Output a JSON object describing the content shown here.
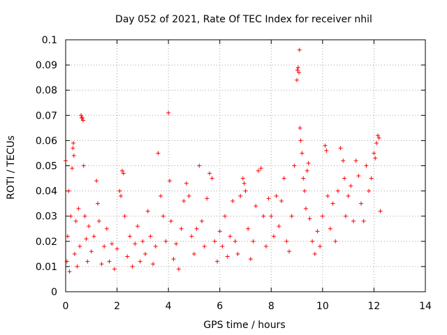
{
  "chart_data": {
    "type": "scatter",
    "title": "Day 052 of 2021, Rate Of TEC Index for receiver nhil",
    "xlabel": "GPS time / hours",
    "ylabel": "ROTI / TECUs",
    "xlim": [
      0,
      14
    ],
    "ylim": [
      0,
      0.1
    ],
    "x_ticks": [
      0,
      2,
      4,
      6,
      8,
      10,
      12,
      14
    ],
    "y_ticks": [
      0,
      0.01,
      0.02,
      0.03,
      0.04,
      0.05,
      0.06,
      0.07,
      0.08,
      0.09,
      0.1
    ],
    "x_tick_labels": [
      "0",
      "2",
      "4",
      "6",
      "8",
      "10",
      "12",
      "14"
    ],
    "y_tick_labels": [
      "0",
      "0.01",
      "0.02",
      "0.03",
      "0.04",
      "0.05",
      "0.06",
      "0.07",
      "0.08",
      "0.09",
      "0.1"
    ],
    "grid": true,
    "marker": "+",
    "color": "#ff0000",
    "series": [
      {
        "name": "ROTI",
        "points": [
          [
            0.0,
            0.052
          ],
          [
            0.05,
            0.012
          ],
          [
            0.08,
            0.022
          ],
          [
            0.12,
            0.04
          ],
          [
            0.15,
            0.008
          ],
          [
            0.2,
            0.03
          ],
          [
            0.25,
            0.049
          ],
          [
            0.28,
            0.057
          ],
          [
            0.3,
            0.059
          ],
          [
            0.32,
            0.054
          ],
          [
            0.35,
            0.015
          ],
          [
            0.4,
            0.028
          ],
          [
            0.45,
            0.01
          ],
          [
            0.5,
            0.033
          ],
          [
            0.55,
            0.018
          ],
          [
            0.6,
            0.07
          ],
          [
            0.62,
            0.069
          ],
          [
            0.65,
            0.069
          ],
          [
            0.68,
            0.068
          ],
          [
            0.7,
            0.05
          ],
          [
            0.75,
            0.03
          ],
          [
            0.8,
            0.021
          ],
          [
            0.85,
            0.012
          ],
          [
            0.9,
            0.026
          ],
          [
            1.0,
            0.016
          ],
          [
            1.1,
            0.022
          ],
          [
            1.2,
            0.044
          ],
          [
            1.25,
            0.035
          ],
          [
            1.3,
            0.028
          ],
          [
            1.4,
            0.011
          ],
          [
            1.5,
            0.018
          ],
          [
            1.6,
            0.025
          ],
          [
            1.7,
            0.012
          ],
          [
            1.8,
            0.019
          ],
          [
            1.9,
            0.009
          ],
          [
            2.0,
            0.017
          ],
          [
            2.1,
            0.04
          ],
          [
            2.15,
            0.038
          ],
          [
            2.2,
            0.048
          ],
          [
            2.25,
            0.047
          ],
          [
            2.3,
            0.03
          ],
          [
            2.4,
            0.014
          ],
          [
            2.5,
            0.022
          ],
          [
            2.6,
            0.01
          ],
          [
            2.7,
            0.019
          ],
          [
            2.8,
            0.026
          ],
          [
            2.9,
            0.012
          ],
          [
            3.0,
            0.02
          ],
          [
            3.1,
            0.015
          ],
          [
            3.2,
            0.032
          ],
          [
            3.3,
            0.022
          ],
          [
            3.4,
            0.011
          ],
          [
            3.5,
            0.018
          ],
          [
            3.6,
            0.055
          ],
          [
            3.7,
            0.038
          ],
          [
            3.8,
            0.03
          ],
          [
            3.9,
            0.02
          ],
          [
            4.0,
            0.071
          ],
          [
            4.05,
            0.044
          ],
          [
            4.1,
            0.028
          ],
          [
            4.2,
            0.013
          ],
          [
            4.3,
            0.019
          ],
          [
            4.4,
            0.009
          ],
          [
            4.5,
            0.025
          ],
          [
            4.6,
            0.036
          ],
          [
            4.7,
            0.043
          ],
          [
            4.8,
            0.038
          ],
          [
            4.9,
            0.022
          ],
          [
            5.0,
            0.015
          ],
          [
            5.1,
            0.025
          ],
          [
            5.2,
            0.05
          ],
          [
            5.3,
            0.028
          ],
          [
            5.4,
            0.018
          ],
          [
            5.5,
            0.037
          ],
          [
            5.6,
            0.047
          ],
          [
            5.7,
            0.045
          ],
          [
            5.8,
            0.02
          ],
          [
            5.9,
            0.012
          ],
          [
            6.0,
            0.024
          ],
          [
            6.1,
            0.018
          ],
          [
            6.2,
            0.03
          ],
          [
            6.3,
            0.014
          ],
          [
            6.4,
            0.022
          ],
          [
            6.5,
            0.036
          ],
          [
            6.6,
            0.02
          ],
          [
            6.7,
            0.015
          ],
          [
            6.8,
            0.038
          ],
          [
            6.9,
            0.045
          ],
          [
            6.95,
            0.043
          ],
          [
            7.0,
            0.04
          ],
          [
            7.1,
            0.025
          ],
          [
            7.2,
            0.013
          ],
          [
            7.3,
            0.02
          ],
          [
            7.4,
            0.034
          ],
          [
            7.5,
            0.048
          ],
          [
            7.6,
            0.049
          ],
          [
            7.7,
            0.03
          ],
          [
            7.8,
            0.018
          ],
          [
            7.9,
            0.037
          ],
          [
            8.0,
            0.03
          ],
          [
            8.1,
            0.022
          ],
          [
            8.2,
            0.038
          ],
          [
            8.3,
            0.026
          ],
          [
            8.4,
            0.036
          ],
          [
            8.5,
            0.045
          ],
          [
            8.6,
            0.02
          ],
          [
            8.7,
            0.016
          ],
          [
            8.8,
            0.03
          ],
          [
            8.9,
            0.05
          ],
          [
            9.0,
            0.084
          ],
          [
            9.02,
            0.088
          ],
          [
            9.05,
            0.089
          ],
          [
            9.08,
            0.087
          ],
          [
            9.1,
            0.096
          ],
          [
            9.12,
            0.065
          ],
          [
            9.15,
            0.06
          ],
          [
            9.2,
            0.055
          ],
          [
            9.25,
            0.045
          ],
          [
            9.3,
            0.04
          ],
          [
            9.35,
            0.033
          ],
          [
            9.4,
            0.048
          ],
          [
            9.45,
            0.051
          ],
          [
            9.5,
            0.029
          ],
          [
            9.6,
            0.02
          ],
          [
            9.7,
            0.015
          ],
          [
            9.8,
            0.024
          ],
          [
            9.9,
            0.018
          ],
          [
            10.0,
            0.03
          ],
          [
            10.1,
            0.058
          ],
          [
            10.15,
            0.056
          ],
          [
            10.2,
            0.038
          ],
          [
            10.3,
            0.025
          ],
          [
            10.4,
            0.035
          ],
          [
            10.5,
            0.02
          ],
          [
            10.6,
            0.04
          ],
          [
            10.7,
            0.057
          ],
          [
            10.8,
            0.052
          ],
          [
            10.85,
            0.045
          ],
          [
            10.9,
            0.03
          ],
          [
            11.0,
            0.038
          ],
          [
            11.1,
            0.042
          ],
          [
            11.2,
            0.028
          ],
          [
            11.3,
            0.052
          ],
          [
            11.4,
            0.046
          ],
          [
            11.5,
            0.035
          ],
          [
            11.6,
            0.028
          ],
          [
            11.7,
            0.05
          ],
          [
            11.8,
            0.04
          ],
          [
            11.9,
            0.045
          ],
          [
            12.0,
            0.055
          ],
          [
            12.05,
            0.053
          ],
          [
            12.1,
            0.059
          ],
          [
            12.15,
            0.062
          ],
          [
            12.2,
            0.061
          ],
          [
            12.25,
            0.032
          ]
        ]
      }
    ]
  }
}
